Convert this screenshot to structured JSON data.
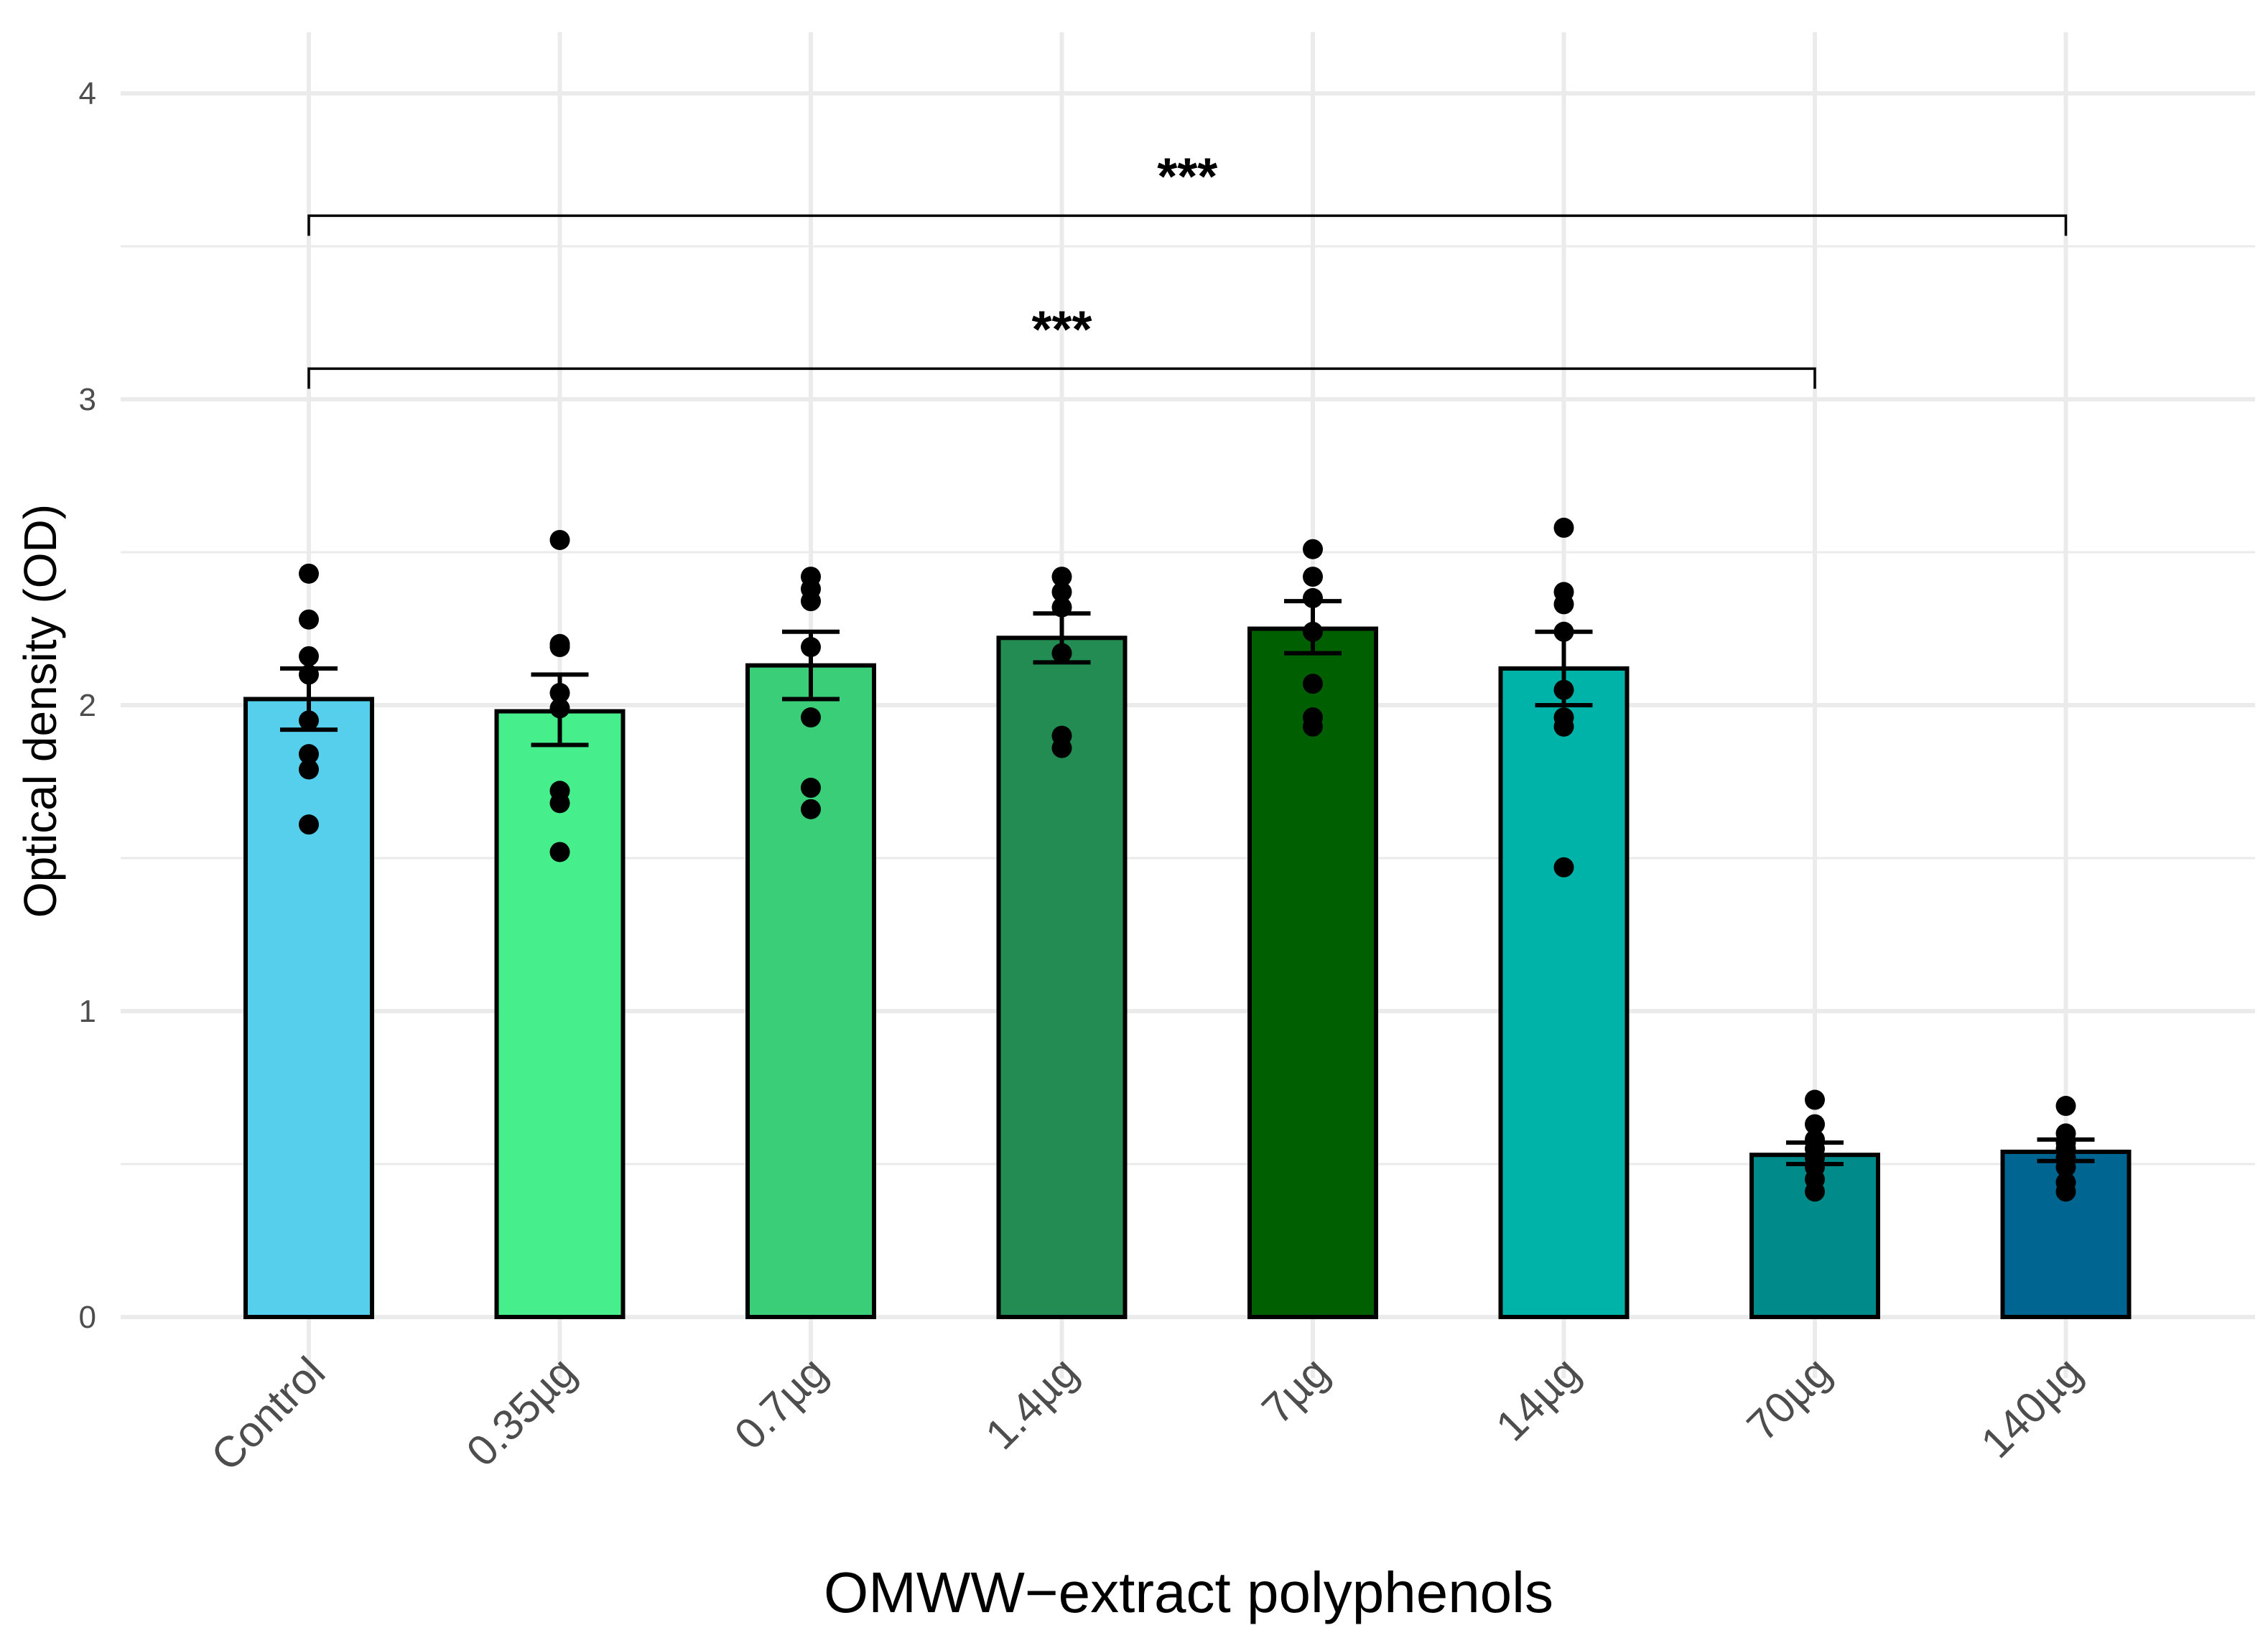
{
  "chart_data": {
    "type": "bar",
    "title": "",
    "xlabel": "OMWW−extract polyphenols",
    "ylabel": "Optical density (OD)",
    "ylim": [
      -0.2,
      4.2
    ],
    "yticks": [
      0,
      1,
      2,
      3,
      4
    ],
    "grid": true,
    "categories": [
      "Control",
      "0.35µg",
      "0.7µg",
      "1.4µg",
      "7µg",
      "14µg",
      "70µg",
      "140µg"
    ],
    "values": [
      2.02,
      1.98,
      2.13,
      2.22,
      2.25,
      2.12,
      0.53,
      0.54
    ],
    "errors": [
      [
        1.92,
        2.12
      ],
      [
        1.87,
        2.1
      ],
      [
        2.02,
        2.24
      ],
      [
        2.14,
        2.3
      ],
      [
        2.17,
        2.34
      ],
      [
        2.0,
        2.24
      ],
      [
        0.5,
        0.57
      ],
      [
        0.51,
        0.58
      ]
    ],
    "colors": [
      "#56CFEC",
      "#47EF8C",
      "#3BCE78",
      "#238C52",
      "#005F00",
      "#00B3A9",
      "#008B8B",
      "#006590"
    ],
    "points": [
      [
        2.43,
        2.28,
        2.16,
        2.1,
        1.95,
        1.84,
        1.79,
        1.61
      ],
      [
        2.54,
        2.2,
        2.19,
        2.04,
        1.99,
        1.72,
        1.68,
        1.52
      ],
      [
        2.42,
        2.38,
        2.34,
        2.19,
        1.96,
        1.73,
        1.66
      ],
      [
        2.42,
        2.37,
        2.32,
        2.17,
        1.9,
        1.86
      ],
      [
        2.51,
        2.42,
        2.35,
        2.24,
        2.07,
        1.96,
        1.93
      ],
      [
        2.58,
        2.37,
        2.33,
        2.24,
        2.05,
        1.96,
        1.93,
        1.47
      ],
      [
        0.71,
        0.63,
        0.58,
        0.55,
        0.52,
        0.49,
        0.45,
        0.41
      ],
      [
        0.69,
        0.6,
        0.57,
        0.55,
        0.52,
        0.49,
        0.44,
        0.41
      ]
    ],
    "significance": [
      {
        "from": "Control",
        "to": "70µg",
        "y": 3.1,
        "label": "***"
      },
      {
        "from": "Control",
        "to": "140µg",
        "y": 3.6,
        "label": "***"
      }
    ]
  }
}
